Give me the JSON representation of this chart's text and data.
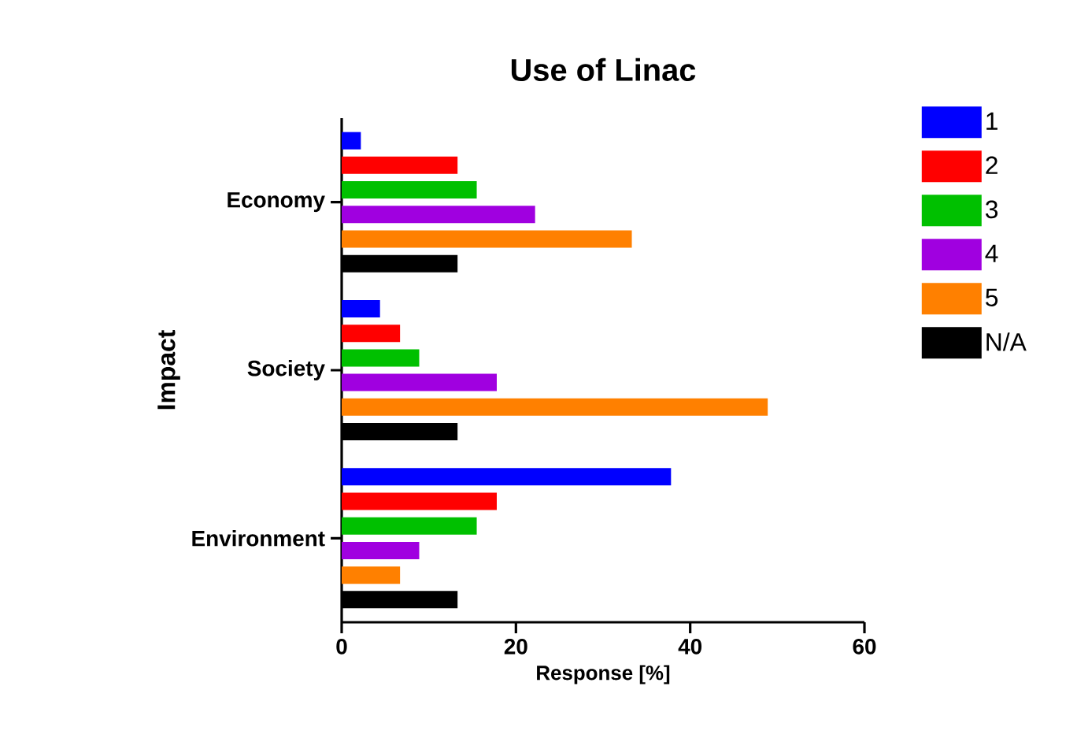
{
  "chart_data": {
    "type": "bar",
    "orientation": "horizontal",
    "title": "Use of Linac",
    "xlabel": "Response [%]",
    "ylabel": "Impact",
    "categories": [
      "Economy",
      "Society",
      "Environment"
    ],
    "series": [
      {
        "name": "1",
        "color": "#0000ff",
        "values": [
          2.2,
          4.4,
          37.8
        ]
      },
      {
        "name": "2",
        "color": "#ff0000",
        "values": [
          13.3,
          6.7,
          17.8
        ]
      },
      {
        "name": "3",
        "color": "#00c000",
        "values": [
          15.5,
          8.9,
          15.5
        ]
      },
      {
        "name": "4",
        "color": "#a000e0",
        "values": [
          22.2,
          17.8,
          8.9
        ]
      },
      {
        "name": "5",
        "color": "#ff8000",
        "values": [
          33.3,
          48.9,
          6.7
        ]
      },
      {
        "name": "N/A",
        "color": "#000000",
        "values": [
          13.3,
          13.3,
          13.3
        ]
      }
    ],
    "xlim": [
      0,
      60
    ],
    "xticks": [
      0,
      20,
      40,
      60
    ],
    "grid": false,
    "legend": "right"
  }
}
